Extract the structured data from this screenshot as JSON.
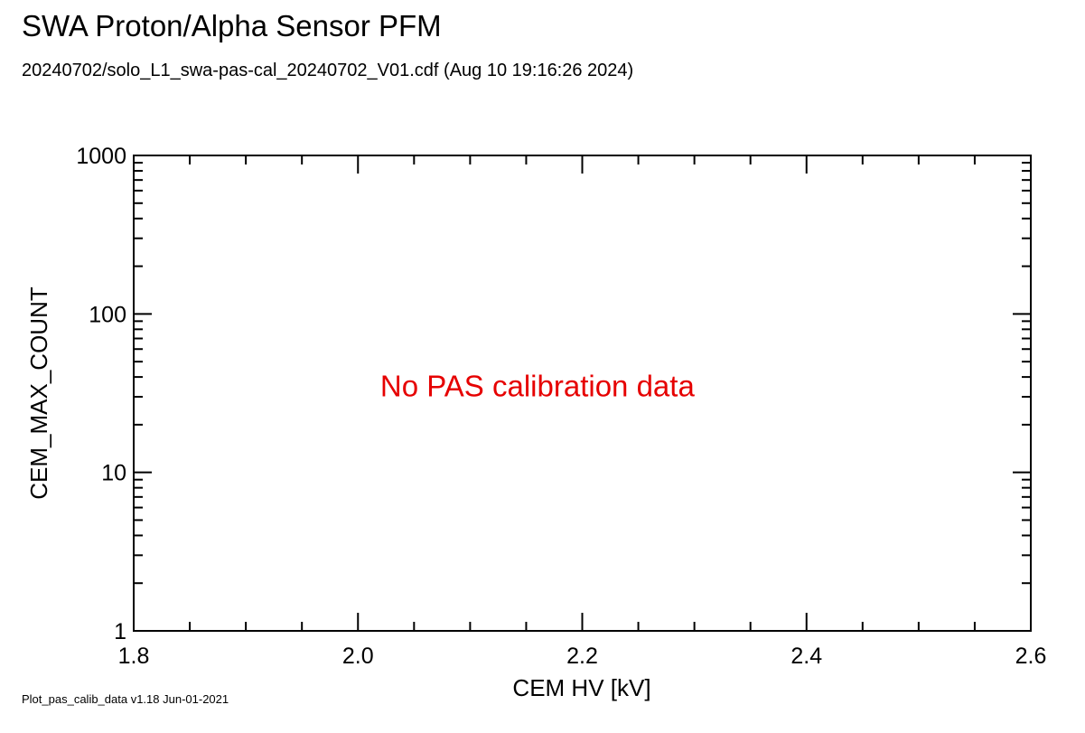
{
  "header": {
    "title": "SWA Proton/Alpha Sensor PFM",
    "subtitle": "20240702/solo_L1_swa-pas-cal_20240702_V01.cdf  (Aug 10 19:16:26 2024)"
  },
  "footer": {
    "version_note": "Plot_pas_calib_data v1.18 Jun-01-2021"
  },
  "colors": {
    "axes": "#000000",
    "annotation": "#e60000"
  },
  "chart_data": {
    "type": "scatter",
    "title": "SWA Proton/Alpha Sensor PFM",
    "subtitle": "20240702/solo_L1_swa-pas-cal_20240702_V01.cdf  (Aug 10 19:16:26 2024)",
    "xlabel": "CEM HV [kV]",
    "ylabel": "CEM_MAX_COUNT",
    "xlim": [
      1.8,
      2.6
    ],
    "ylim": [
      1,
      1000
    ],
    "yscale": "log",
    "x_major_ticks": [
      1.8,
      2.0,
      2.2,
      2.4,
      2.6
    ],
    "x_tick_labels": [
      "1.8",
      "2.0",
      "2.2",
      "2.4",
      "2.6"
    ],
    "x_minor_ticks": [
      1.85,
      1.9,
      1.95,
      2.05,
      2.1,
      2.15,
      2.25,
      2.3,
      2.35,
      2.45,
      2.5,
      2.55
    ],
    "y_major_ticks": [
      1,
      10,
      100,
      1000
    ],
    "y_tick_labels": [
      "1",
      "10",
      "100",
      "1000"
    ],
    "grid": false,
    "series": [],
    "annotation": {
      "text": "No PAS calibration data",
      "x": 2.16,
      "y": 35
    }
  }
}
